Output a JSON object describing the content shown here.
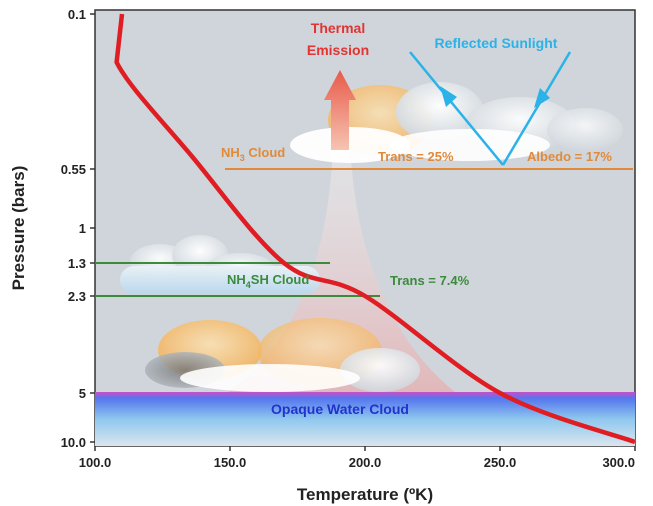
{
  "figure": {
    "ylabel": "Pressure (bars)",
    "xlabel": "Temperature (ºK)"
  },
  "axes": {
    "x_ticks": [
      "100.0",
      "150.0",
      "200.0",
      "250.0",
      "300.0"
    ],
    "y_ticks": [
      "0.1",
      "0.55",
      "1",
      "1.3",
      "2.3",
      "5",
      "10.0"
    ]
  },
  "labels": {
    "thermal_line1": "Thermal",
    "thermal_line2": "Emission",
    "reflected": "Reflected Sunlight",
    "nh3_prefix": "NH",
    "nh3_sub": "3",
    "nh3_suffix": " Cloud",
    "nh4sh_prefix": "NH",
    "nh4sh_sub": "4",
    "nh4sh_suffix": "SH Cloud",
    "trans_25": "Trans = 25%",
    "albedo": "Albedo = 17%",
    "trans_74": "Trans = 7.4%",
    "water": "Opaque Water Cloud"
  },
  "colors": {
    "plot_bg": "#cfd5da",
    "profile": "#e01d22",
    "nh3": "#e08a3a",
    "nh4sh": "#3c8a3c",
    "water": "#2233cc",
    "sunlight": "#2bb2e8",
    "thermal": "#e33333"
  },
  "chart_data": {
    "type": "line",
    "xlabel": "Temperature (ºK)",
    "ylabel": "Pressure (bars)",
    "xlim": [
      100,
      300
    ],
    "ylim": [
      0.1,
      10
    ],
    "y_scale": "log-like, inverted (pressure increases downward)",
    "series": [
      {
        "x": [
          110,
          108,
          136,
          170,
          200,
          250,
          300
        ],
        "y": [
          0.1,
          0.17,
          0.48,
          1.3,
          2.3,
          5,
          10
        ]
      }
    ],
    "levels": [
      {
        "label": "NH3 Cloud",
        "pressure": 0.55
      },
      {
        "label": "NH4SH Cloud",
        "pressure": 1.3
      },
      {
        "pressure": 2.3
      },
      {
        "label": "Opaque Water Cloud",
        "pressure": 5
      }
    ]
  }
}
